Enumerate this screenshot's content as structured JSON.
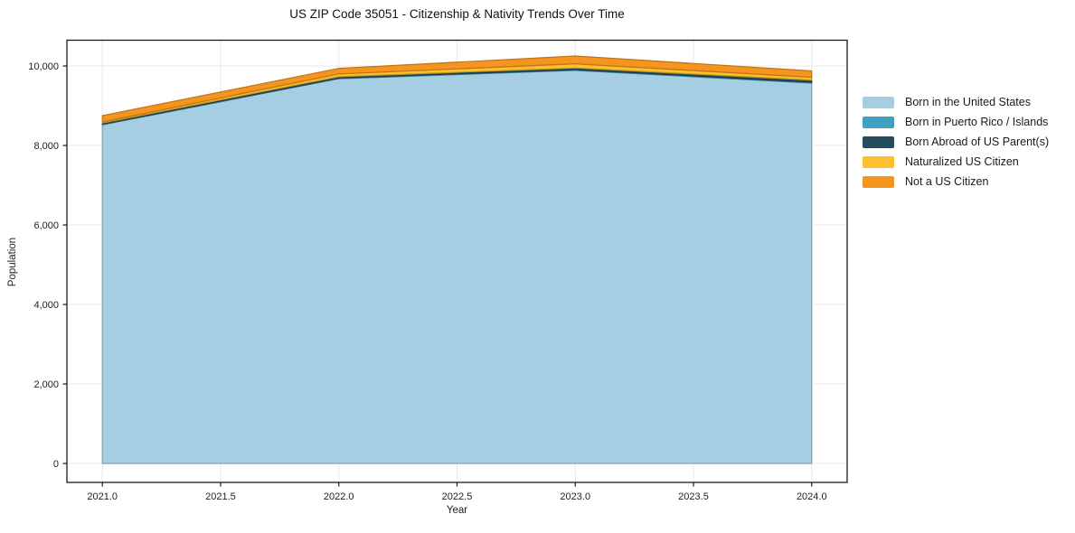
{
  "title": "US ZIP Code 35051 - Citizenship & Nativity Trends Over Time",
  "chart_data": {
    "type": "area",
    "stacked": true,
    "title": "US ZIP Code 35051 - Citizenship & Nativity Trends Over Time",
    "xlabel": "Year",
    "ylabel": "Population",
    "x": [
      2021,
      2022,
      2023,
      2024
    ],
    "series": [
      {
        "name": "Born in the United States",
        "color": "#A6CEE3",
        "values": [
          8520,
          9680,
          9890,
          9570
        ]
      },
      {
        "name": "Born in Puerto Rico / Islands",
        "color": "#3FA0C0",
        "values": [
          15,
          15,
          20,
          20
        ]
      },
      {
        "name": "Born Abroad of US Parent(s)",
        "color": "#254B5E",
        "values": [
          30,
          35,
          40,
          55
        ]
      },
      {
        "name": "Naturalized US Citizen",
        "color": "#FDC02E",
        "values": [
          25,
          70,
          105,
          70
        ]
      },
      {
        "name": "Not a US Citizen",
        "color": "#F5941F",
        "values": [
          160,
          140,
          195,
          160
        ]
      }
    ],
    "xlim": [
      2020.85,
      2024.15
    ],
    "ylim": [
      -477,
      10648
    ],
    "xticks": [
      2021.0,
      2021.5,
      2022.0,
      2022.5,
      2023.0,
      2023.5,
      2024.0
    ],
    "xtick_labels": [
      "2021.0",
      "2021.5",
      "2022.0",
      "2022.5",
      "2023.0",
      "2023.5",
      "2024.0"
    ],
    "yticks": [
      0,
      2000,
      4000,
      6000,
      8000,
      10000
    ],
    "ytick_labels": [
      "0",
      "2,000",
      "4,000",
      "6,000",
      "8,000",
      "10,000"
    ],
    "grid": true,
    "grid_color": "#E8E8E8",
    "spine_color": "#1a1a1a",
    "tick_label_color": "#222222",
    "legend_position": "right-outside"
  }
}
